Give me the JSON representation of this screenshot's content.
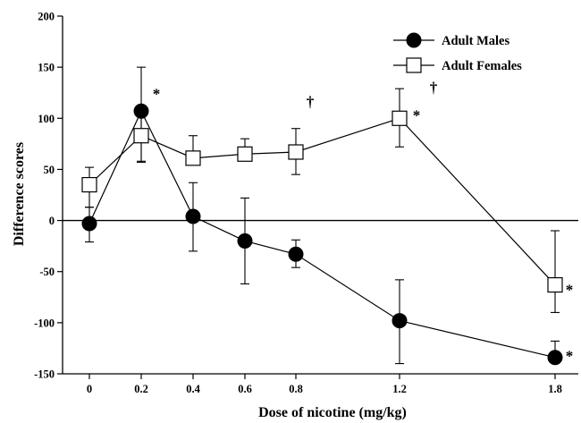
{
  "chart_data": {
    "type": "line",
    "xlabel": "Dose of nicotine (mg/kg)",
    "ylabel": "Difference scores",
    "x": [
      0,
      0.2,
      0.4,
      0.6,
      0.8,
      1.2,
      1.8
    ],
    "x_tick_labels": [
      "0",
      "0.2",
      "0.4",
      "0.6",
      "0.8",
      "1.2",
      "1.8"
    ],
    "ylim": [
      -150,
      200
    ],
    "y_ticks": [
      -150,
      -100,
      -50,
      0,
      50,
      100,
      150,
      200
    ],
    "y_tick_labels": [
      "-150",
      "-100",
      "-50",
      "0",
      "50",
      "100",
      "150",
      "200"
    ],
    "zero_line": true,
    "legend_position": "top-right",
    "series": [
      {
        "name": "Adult Males",
        "marker": "filled-circle",
        "color": "#000000",
        "values": [
          -3,
          107,
          4,
          -20,
          -33,
          -98,
          -134
        ],
        "err_upper": [
          16,
          43,
          33,
          42,
          14,
          40,
          16
        ],
        "err_lower": [
          18,
          50,
          34,
          42,
          13,
          42,
          0
        ]
      },
      {
        "name": "Adult Females",
        "marker": "open-square",
        "color": "#000000",
        "values": [
          35,
          83,
          61,
          65,
          67,
          100,
          -63
        ],
        "err_upper": [
          17,
          26,
          22,
          15,
          23,
          29,
          53
        ],
        "err_lower": [
          22,
          25,
          0,
          0,
          22,
          28,
          27
        ]
      }
    ],
    "annotations": [
      {
        "text": "*",
        "x": 0.2,
        "y": 107
      },
      {
        "text": "†",
        "x": 0.8,
        "y": 105
      },
      {
        "text": "*",
        "x": 1.2,
        "y": 100
      },
      {
        "text": "†",
        "x": 1.2,
        "y": 120
      },
      {
        "text": "*",
        "x": 1.8,
        "y": -63
      },
      {
        "text": "*",
        "x": 1.8,
        "y": -134
      }
    ]
  }
}
